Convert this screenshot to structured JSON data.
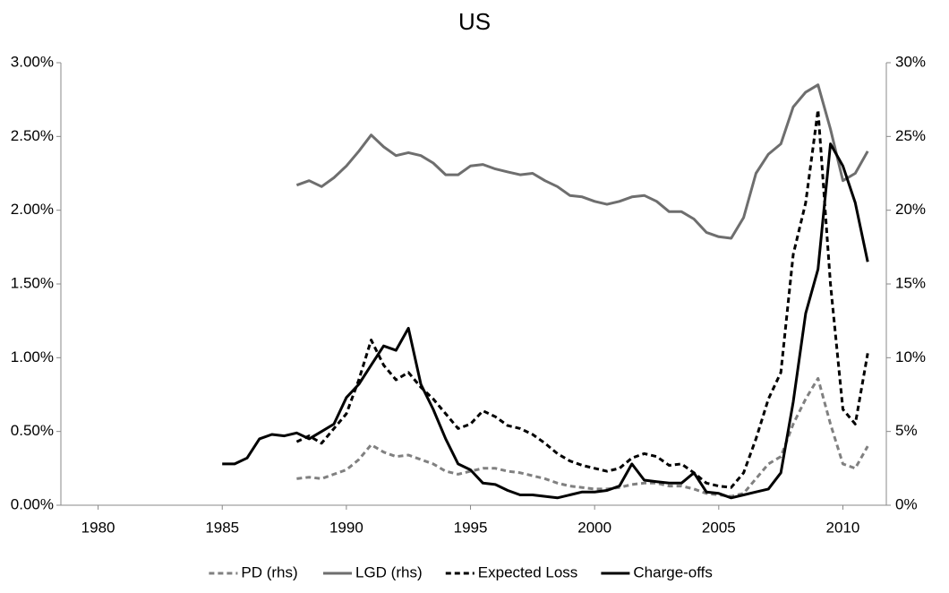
{
  "chart_data": {
    "type": "line",
    "title": "US",
    "x": [
      1985,
      1985.5,
      1986,
      1986.5,
      1987,
      1987.5,
      1988,
      1988.5,
      1989,
      1989.5,
      1990,
      1990.5,
      1991,
      1991.5,
      1992,
      1992.5,
      1993,
      1993.5,
      1994,
      1994.5,
      1995,
      1995.5,
      1996,
      1996.5,
      1997,
      1997.5,
      1998,
      1998.5,
      1999,
      1999.5,
      2000,
      2000.5,
      2001,
      2001.5,
      2002,
      2002.5,
      2003,
      2003.5,
      2004,
      2004.5,
      2005,
      2005.5,
      2006,
      2006.5,
      2007,
      2007.5,
      2008,
      2008.5,
      2009,
      2009.5,
      2010,
      2010.5,
      2011
    ],
    "series": [
      {
        "name": "PD (rhs)",
        "color": "#808080",
        "dash": true,
        "axis": "y2",
        "values": [
          null,
          null,
          null,
          null,
          null,
          null,
          1.8,
          1.9,
          1.8,
          2.1,
          2.4,
          3.1,
          4.1,
          3.6,
          3.3,
          3.4,
          3.1,
          2.8,
          2.3,
          2.1,
          2.3,
          2.5,
          2.5,
          2.3,
          2.2,
          2.0,
          1.8,
          1.5,
          1.3,
          1.2,
          1.1,
          1.1,
          1.2,
          1.4,
          1.5,
          1.5,
          1.3,
          1.3,
          1.1,
          0.8,
          0.7,
          0.6,
          0.8,
          1.8,
          2.8,
          3.3,
          5.5,
          7.2,
          8.6,
          5.5,
          2.8,
          2.5,
          4.0
        ]
      },
      {
        "name": "LGD (rhs)",
        "color": "#6e6e6e",
        "dash": false,
        "axis": "y2",
        "values": [
          null,
          null,
          null,
          null,
          null,
          null,
          21.7,
          22.0,
          21.6,
          22.2,
          23.0,
          24.0,
          25.1,
          24.3,
          23.7,
          23.9,
          23.7,
          23.2,
          22.4,
          22.4,
          23.0,
          23.1,
          22.8,
          22.6,
          22.4,
          22.5,
          22.0,
          21.6,
          21.0,
          20.9,
          20.6,
          20.4,
          20.6,
          20.9,
          21.0,
          20.6,
          19.9,
          19.9,
          19.4,
          18.5,
          18.2,
          18.1,
          19.5,
          22.5,
          23.8,
          24.5,
          27.0,
          28.0,
          28.5,
          25.5,
          22.0,
          22.5,
          24.0
        ]
      },
      {
        "name": "Expected Loss",
        "color": "#000000",
        "dash": true,
        "axis": "y",
        "values": [
          null,
          null,
          null,
          null,
          null,
          null,
          0.43,
          0.47,
          0.42,
          0.52,
          0.62,
          0.85,
          1.12,
          0.95,
          0.85,
          0.9,
          0.8,
          0.72,
          0.62,
          0.52,
          0.55,
          0.64,
          0.6,
          0.54,
          0.52,
          0.48,
          0.42,
          0.35,
          0.3,
          0.27,
          0.25,
          0.23,
          0.25,
          0.32,
          0.35,
          0.33,
          0.27,
          0.28,
          0.22,
          0.15,
          0.13,
          0.12,
          0.22,
          0.45,
          0.72,
          0.9,
          1.7,
          2.05,
          2.68,
          1.5,
          0.65,
          0.55,
          1.03
        ]
      },
      {
        "name": "Charge-offs",
        "color": "#000000",
        "dash": false,
        "axis": "y",
        "values": [
          0.28,
          0.28,
          0.32,
          0.45,
          0.48,
          0.47,
          0.49,
          0.45,
          0.5,
          0.55,
          0.73,
          0.82,
          0.95,
          1.08,
          1.05,
          1.2,
          0.82,
          0.65,
          0.45,
          0.28,
          0.24,
          0.15,
          0.14,
          0.1,
          0.07,
          0.07,
          0.06,
          0.05,
          0.07,
          0.09,
          0.09,
          0.1,
          0.13,
          0.28,
          0.17,
          0.16,
          0.15,
          0.15,
          0.22,
          0.09,
          0.08,
          0.05,
          0.07,
          0.09,
          0.11,
          0.22,
          0.7,
          1.3,
          1.6,
          2.45,
          2.3,
          2.05,
          1.65
        ]
      }
    ],
    "xlim": [
      1978.5,
      2011.75
    ],
    "xticks": [
      1980,
      1985,
      1990,
      1995,
      2000,
      2005,
      2010
    ],
    "ylim": [
      0,
      3
    ],
    "yticks": [
      {
        "value": 0,
        "label": "0.00%"
      },
      {
        "value": 0.5,
        "label": "0.50%"
      },
      {
        "value": 1,
        "label": "1.00%"
      },
      {
        "value": 1.5,
        "label": "1.50%"
      },
      {
        "value": 2,
        "label": "2.00%"
      },
      {
        "value": 2.5,
        "label": "2.50%"
      },
      {
        "value": 3,
        "label": "3.00%"
      }
    ],
    "y2lim": [
      0,
      30
    ],
    "y2ticks": [
      {
        "value": 0,
        "label": "0%"
      },
      {
        "value": 5,
        "label": "5%"
      },
      {
        "value": 10,
        "label": "10%"
      },
      {
        "value": 15,
        "label": "15%"
      },
      {
        "value": 20,
        "label": "20%"
      },
      {
        "value": 25,
        "label": "25%"
      },
      {
        "value": 30,
        "label": "30%"
      }
    ],
    "grid": false,
    "legend": "bottom"
  }
}
